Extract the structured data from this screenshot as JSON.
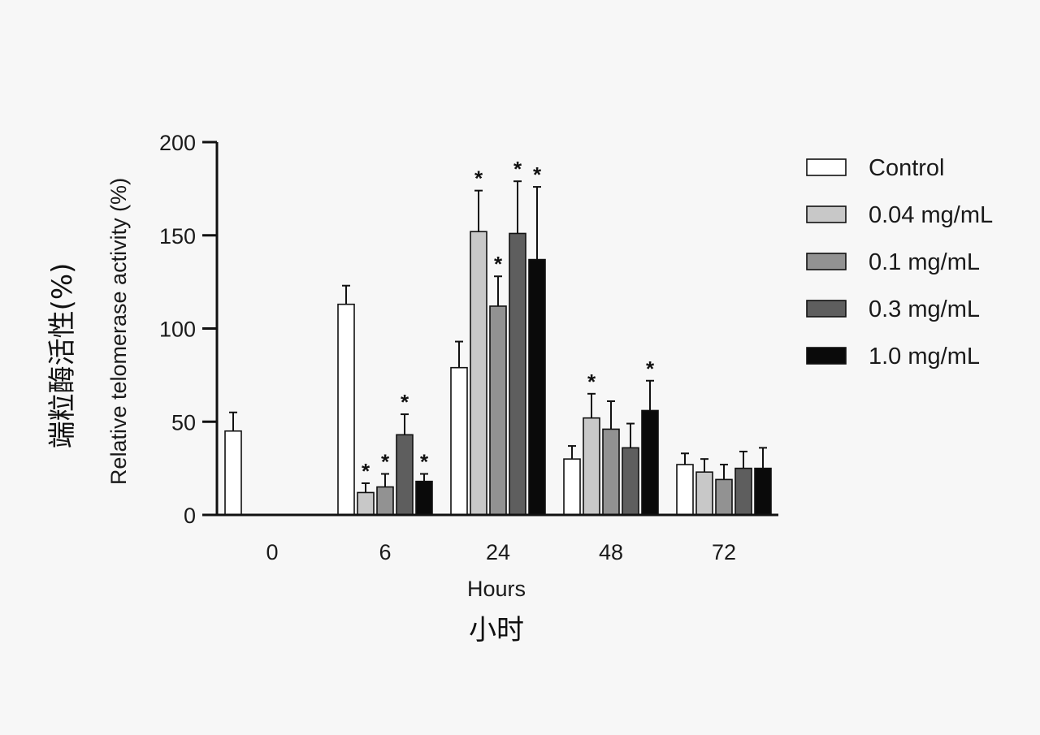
{
  "chart_data": {
    "type": "bar",
    "ylabel": "Relative telomerase activity (%)",
    "ylabel_cn": "端粒酶活性(%)",
    "xlabel": "Hours",
    "xlabel_cn": "小时",
    "ylim": [
      0,
      200
    ],
    "yticks": [
      0,
      50,
      100,
      150,
      200
    ],
    "categories": [
      "0",
      "6",
      "24",
      "48",
      "72"
    ],
    "legend_position": "right",
    "series": [
      {
        "name": "Control",
        "color": "#ffffff",
        "values": [
          45,
          113,
          79,
          30,
          27
        ],
        "errors": [
          10,
          10,
          14,
          7,
          6
        ],
        "significant": [
          false,
          false,
          false,
          false,
          false
        ]
      },
      {
        "name": "0.04 mg/mL",
        "color": "#c8c8c8",
        "values": [
          null,
          12,
          152,
          52,
          23
        ],
        "errors": [
          null,
          5,
          22,
          13,
          7
        ],
        "significant": [
          false,
          true,
          true,
          true,
          false
        ]
      },
      {
        "name": "0.1 mg/mL",
        "color": "#929292",
        "values": [
          null,
          15,
          112,
          46,
          19
        ],
        "errors": [
          null,
          7,
          16,
          15,
          8
        ],
        "significant": [
          false,
          true,
          true,
          false,
          false
        ]
      },
      {
        "name": "0.3 mg/mL",
        "color": "#5e5e5e",
        "values": [
          null,
          43,
          151,
          36,
          25
        ],
        "errors": [
          null,
          11,
          28,
          13,
          9
        ],
        "significant": [
          false,
          true,
          true,
          false,
          false
        ]
      },
      {
        "name": "1.0 mg/mL",
        "color": "#0a0a0a",
        "values": [
          null,
          18,
          137,
          56,
          25
        ],
        "errors": [
          null,
          4,
          39,
          16,
          11
        ],
        "significant": [
          false,
          true,
          true,
          true,
          false
        ]
      }
    ],
    "significance_marker": "*"
  }
}
